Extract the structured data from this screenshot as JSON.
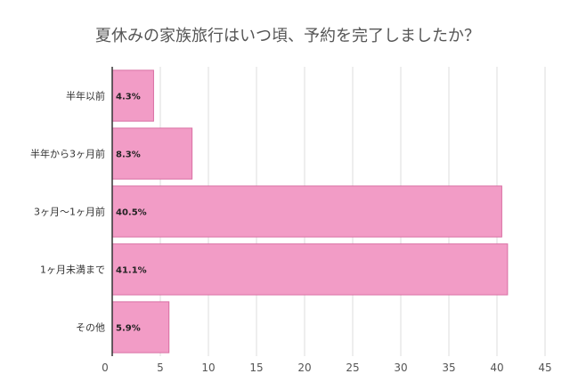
{
  "chart_data": {
    "type": "bar",
    "orientation": "horizontal",
    "title": "夏休みの家族旅行はいつ頃、予約を完了しましたか？",
    "categories": [
      "半年以前",
      "半年から3ヶ月前",
      "3ヶ月〜1ヶ月前",
      "1ヶ月未満まで",
      "その他"
    ],
    "values": [
      4.3,
      8.3,
      40.5,
      41.1,
      5.9
    ],
    "data_labels": [
      "4.3%",
      "8.3%",
      "40.5%",
      "41.1%",
      "5.9%"
    ],
    "xticks": [
      "0",
      "5",
      "10",
      "15",
      "20",
      "25",
      "30",
      "35",
      "40",
      "45"
    ],
    "xlim": [
      0,
      45
    ],
    "grid": true,
    "legend": "none",
    "bar_color": "#f29cc6",
    "bar_border_color": "#d96fa3"
  }
}
